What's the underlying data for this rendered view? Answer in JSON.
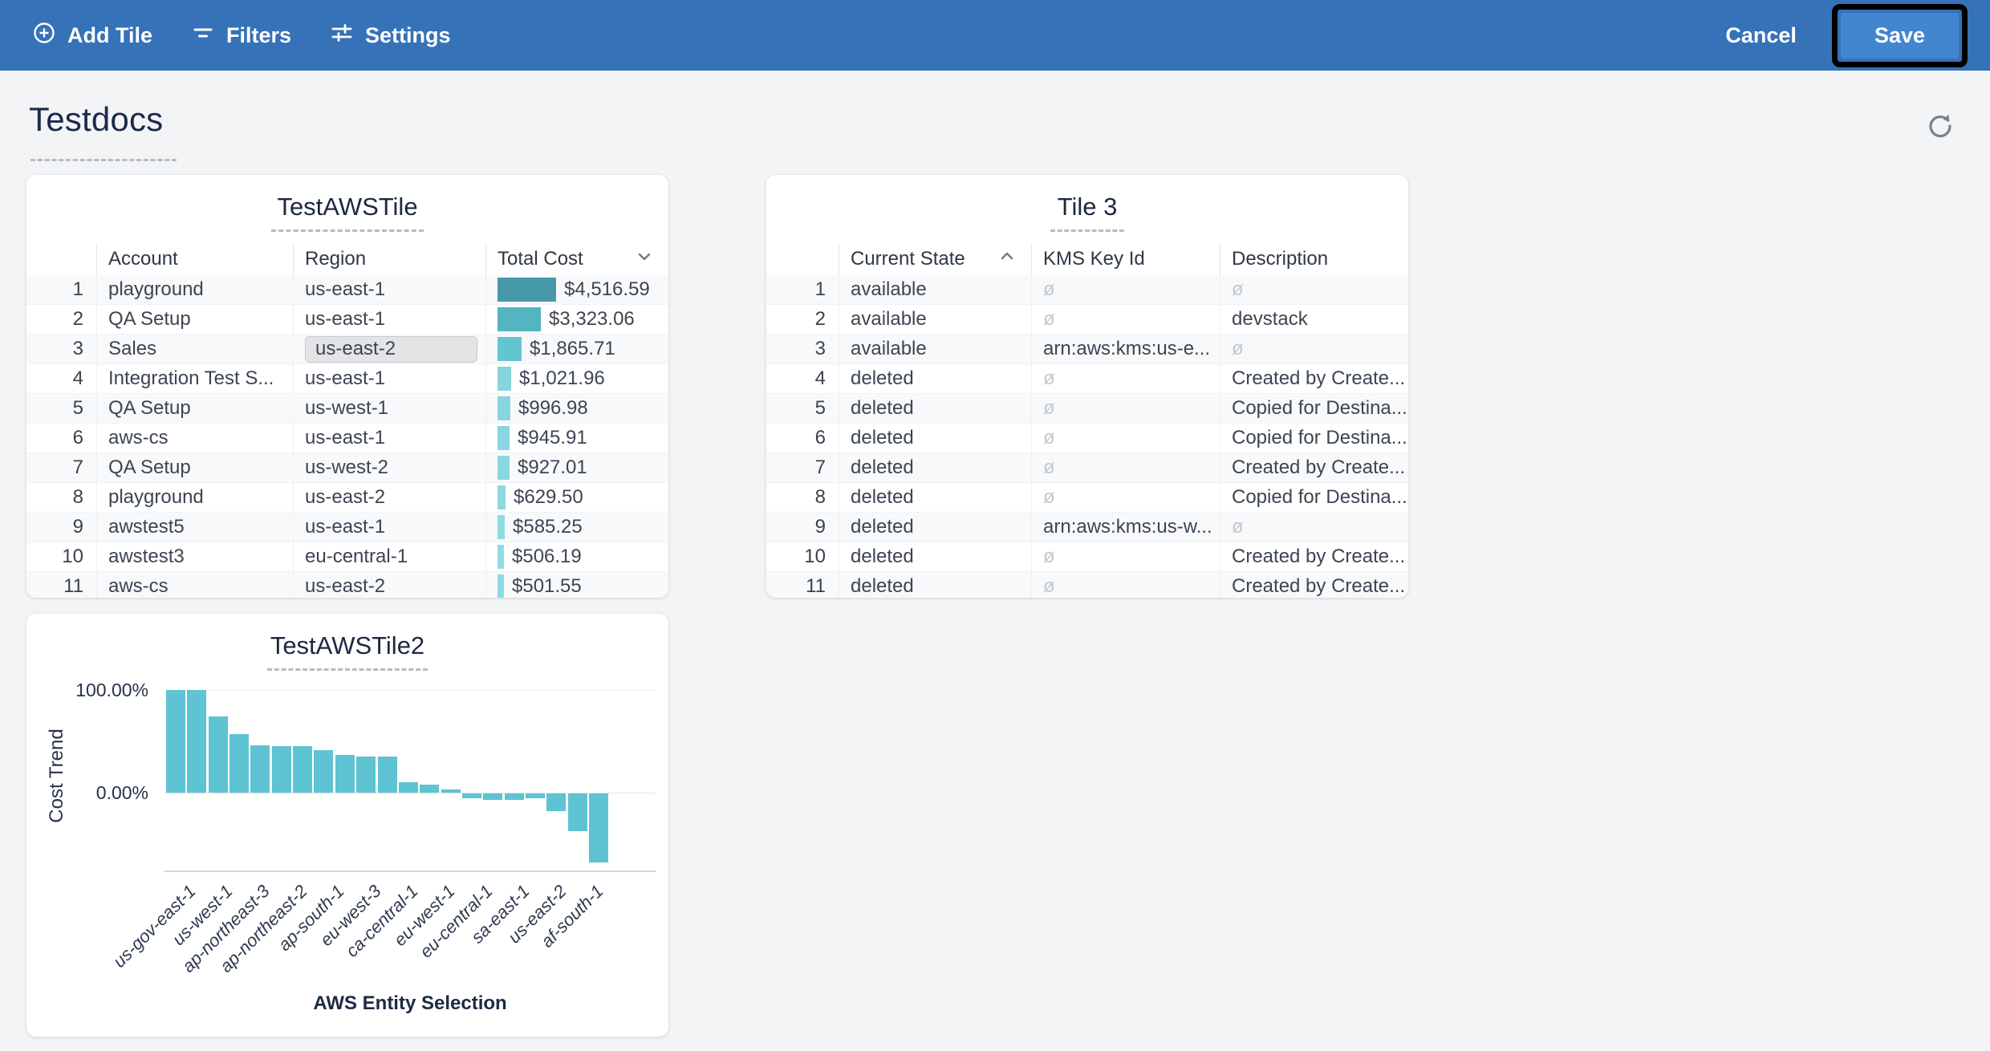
{
  "toolbar": {
    "add_tile_label": "Add Tile",
    "filters_label": "Filters",
    "settings_label": "Settings",
    "cancel_label": "Cancel",
    "save_label": "Save",
    "bar_color": "#3572b8",
    "save_button_color": "#4286d0"
  },
  "page": {
    "title": "Testdocs"
  },
  "icons": {
    "add_tile": "circle-plus-icon",
    "filters": "filter-lines-icon",
    "settings": "sliders-icon",
    "refresh": "refresh-icon",
    "sort_desc": "chevron-down-icon",
    "sort_asc": "chevron-up-icon"
  },
  "tiles": {
    "aws_tile": {
      "title": "TestAWSTile",
      "columns": [
        "Account",
        "Region",
        "Total Cost"
      ],
      "sort": {
        "column": "Total Cost",
        "direction": "desc"
      },
      "max_value": 4516.59,
      "selected_cell": {
        "row": 3,
        "column": "Region"
      },
      "rows": [
        {
          "n": 1,
          "account": "playground",
          "region": "us-east-1",
          "cost": "$4,516.59",
          "value": 4516.59,
          "bar_color": "#4799a9"
        },
        {
          "n": 2,
          "account": "QA Setup",
          "region": "us-east-1",
          "cost": "$3,323.06",
          "value": 3323.06,
          "bar_color": "#55b4c1"
        },
        {
          "n": 3,
          "account": "Sales",
          "region": "us-east-2",
          "cost": "$1,865.71",
          "value": 1865.71,
          "bar_color": "#62c5d2"
        },
        {
          "n": 4,
          "account": "Integration Test S...",
          "region": "us-east-1",
          "cost": "$1,021.96",
          "value": 1021.96,
          "bar_color": "#85d4de"
        },
        {
          "n": 5,
          "account": "QA Setup",
          "region": "us-west-1",
          "cost": "$996.98",
          "value": 996.98,
          "bar_color": "#87d6df"
        },
        {
          "n": 6,
          "account": "aws-cs",
          "region": "us-east-1",
          "cost": "$945.91",
          "value": 945.91,
          "bar_color": "#88d7e0"
        },
        {
          "n": 7,
          "account": "QA Setup",
          "region": "us-west-2",
          "cost": "$927.01",
          "value": 927.01,
          "bar_color": "#89d7e0"
        },
        {
          "n": 8,
          "account": "playground",
          "region": "us-east-2",
          "cost": "$629.50",
          "value": 629.5,
          "bar_color": "#8cd9e1"
        },
        {
          "n": 9,
          "account": "awstest5",
          "region": "us-east-1",
          "cost": "$585.25",
          "value": 585.25,
          "bar_color": "#8ddae1"
        },
        {
          "n": 10,
          "account": "awstest3",
          "region": "eu-central-1",
          "cost": "$506.19",
          "value": 506.19,
          "bar_color": "#8fdbe2"
        },
        {
          "n": 11,
          "account": "aws-cs",
          "region": "us-east-2",
          "cost": "$501.55",
          "value": 501.55,
          "bar_color": "#8fdbe2"
        }
      ],
      "partial_next_row_bar_color": "#90dce3"
    },
    "tile3": {
      "title": "Tile 3",
      "columns": [
        "Current State",
        "KMS Key Id",
        "Description"
      ],
      "sort": {
        "column": "Current State",
        "direction": "asc"
      },
      "null_symbol": "ø",
      "rows": [
        {
          "n": 1,
          "state": "available",
          "kms": null,
          "description": null
        },
        {
          "n": 2,
          "state": "available",
          "kms": null,
          "description": "devstack"
        },
        {
          "n": 3,
          "state": "available",
          "kms": "arn:aws:kms:us-e...",
          "description": null
        },
        {
          "n": 4,
          "state": "deleted",
          "kms": null,
          "description": "Created by Create..."
        },
        {
          "n": 5,
          "state": "deleted",
          "kms": null,
          "description": "Copied for Destina..."
        },
        {
          "n": 6,
          "state": "deleted",
          "kms": null,
          "description": "Copied for Destina..."
        },
        {
          "n": 7,
          "state": "deleted",
          "kms": null,
          "description": "Created by Create..."
        },
        {
          "n": 8,
          "state": "deleted",
          "kms": null,
          "description": "Copied for Destina..."
        },
        {
          "n": 9,
          "state": "deleted",
          "kms": "arn:aws:kms:us-w...",
          "description": null
        },
        {
          "n": 10,
          "state": "deleted",
          "kms": null,
          "description": "Created by Create..."
        },
        {
          "n": 11,
          "state": "deleted",
          "kms": null,
          "description": "Created by Create..."
        }
      ]
    },
    "chart_tile": {
      "title": "TestAWSTile2"
    }
  },
  "chart_data": {
    "type": "bar",
    "title": "TestAWSTile2",
    "xlabel": "AWS Entity Selection",
    "ylabel": "Cost Trend",
    "ytick_labels": [
      "100.00%",
      "0.00%"
    ],
    "ylim": [
      -76,
      108
    ],
    "grid": true,
    "bar_color": "#5ec3d2",
    "values_percent": [
      100,
      100,
      74,
      57,
      46,
      45,
      45,
      41,
      37,
      35,
      35,
      10,
      8,
      3,
      -5,
      -6,
      -6,
      -5,
      -17,
      -37,
      -67
    ],
    "x_tick_labels": [
      "us-gov-east-1",
      "us-west-1",
      "ap-northeast-3",
      "ap-northeast-2",
      "ap-south-1",
      "eu-west-3",
      "ca-central-1",
      "eu-west-1",
      "eu-central-1",
      "sa-east-1",
      "us-east-2",
      "af-south-1"
    ]
  }
}
